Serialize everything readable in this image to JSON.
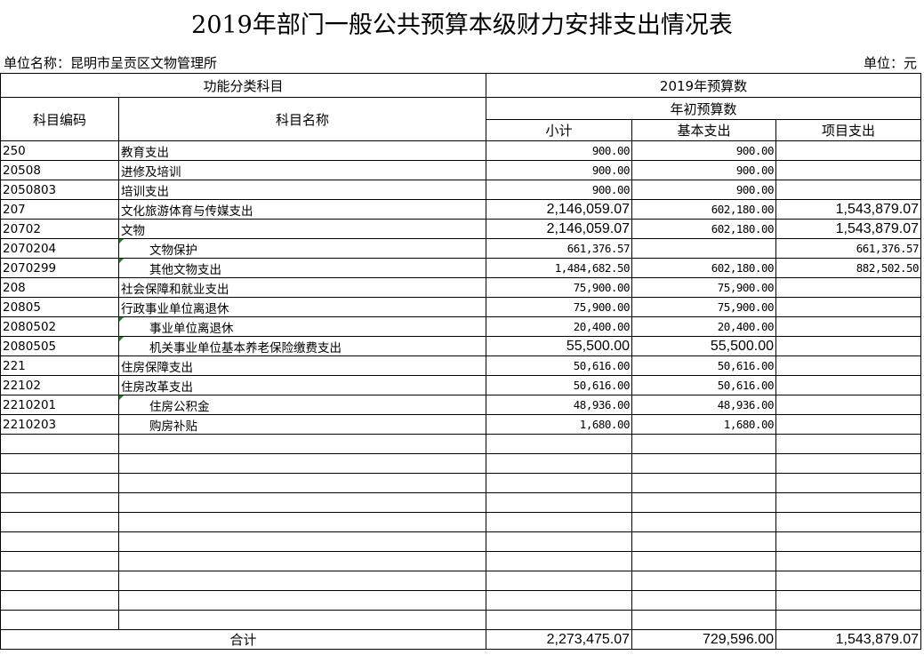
{
  "title": "2019年部门一般公共预算本级财力安排支出情况表",
  "unit_name": "单位名称：昆明市呈贡区文物管理所",
  "unit": "单位：元",
  "headers": {
    "func": "功能分类科目",
    "budget": "2019年预算数",
    "code": "科目编码",
    "name": "科目名称",
    "initial": "年初预算数",
    "subtotal": "小计",
    "basic": "基本支出",
    "project": "项目支出"
  },
  "rows": [
    {
      "code": "250",
      "name": "教育支出",
      "subtotal": "900.00",
      "basic": "900.00",
      "project": ""
    },
    {
      "code": "20508",
      "name": "进修及培训",
      "subtotal": "900.00",
      "basic": "900.00",
      "project": ""
    },
    {
      "code": "2050803",
      "name": "培训支出",
      "subtotal": "900.00",
      "basic": "900.00",
      "project": ""
    },
    {
      "code": "207",
      "name": "文化旅游体育与传媒支出",
      "subtotal": "2,146,059.07",
      "basic": "602,180.00",
      "project": "1,543,879.07"
    },
    {
      "code": "20702",
      "name": "文物",
      "subtotal": "2,146,059.07",
      "basic": "602,180.00",
      "project": "1,543,879.07"
    },
    {
      "code": "2070204",
      "name": "文物保护",
      "subtotal": "661,376.57",
      "basic": "",
      "project": "661,376.57"
    },
    {
      "code": "2070299",
      "name": "其他文物支出",
      "subtotal": "1,484,682.50",
      "basic": "602,180.00",
      "project": "882,502.50"
    },
    {
      "code": "208",
      "name": "社会保障和就业支出",
      "subtotal": "75,900.00",
      "basic": "75,900.00",
      "project": ""
    },
    {
      "code": "20805",
      "name": "行政事业单位离退休",
      "subtotal": "75,900.00",
      "basic": "75,900.00",
      "project": ""
    },
    {
      "code": "2080502",
      "name": "事业单位离退休",
      "subtotal": "20,400.00",
      "basic": "20,400.00",
      "project": ""
    },
    {
      "code": "2080505",
      "name": "机关事业单位基本养老保险缴费支出",
      "subtotal": "55,500.00",
      "basic": "55,500.00",
      "project": ""
    },
    {
      "code": "221",
      "name": "住房保障支出",
      "subtotal": "50,616.00",
      "basic": "50,616.00",
      "project": ""
    },
    {
      "code": "22102",
      "name": "住房改革支出",
      "subtotal": "50,616.00",
      "basic": "50,616.00",
      "project": ""
    },
    {
      "code": "2210201",
      "name": "住房公积金",
      "subtotal": "48,936.00",
      "basic": "48,936.00",
      "project": ""
    },
    {
      "code": "2210203",
      "name": "购房补贴",
      "subtotal": "1,680.00",
      "basic": "1,680.00",
      "project": ""
    }
  ],
  "total": {
    "label": "合计",
    "subtotal": "2,273,475.07",
    "basic": "729,596.00",
    "project": "1,543,879.07"
  }
}
